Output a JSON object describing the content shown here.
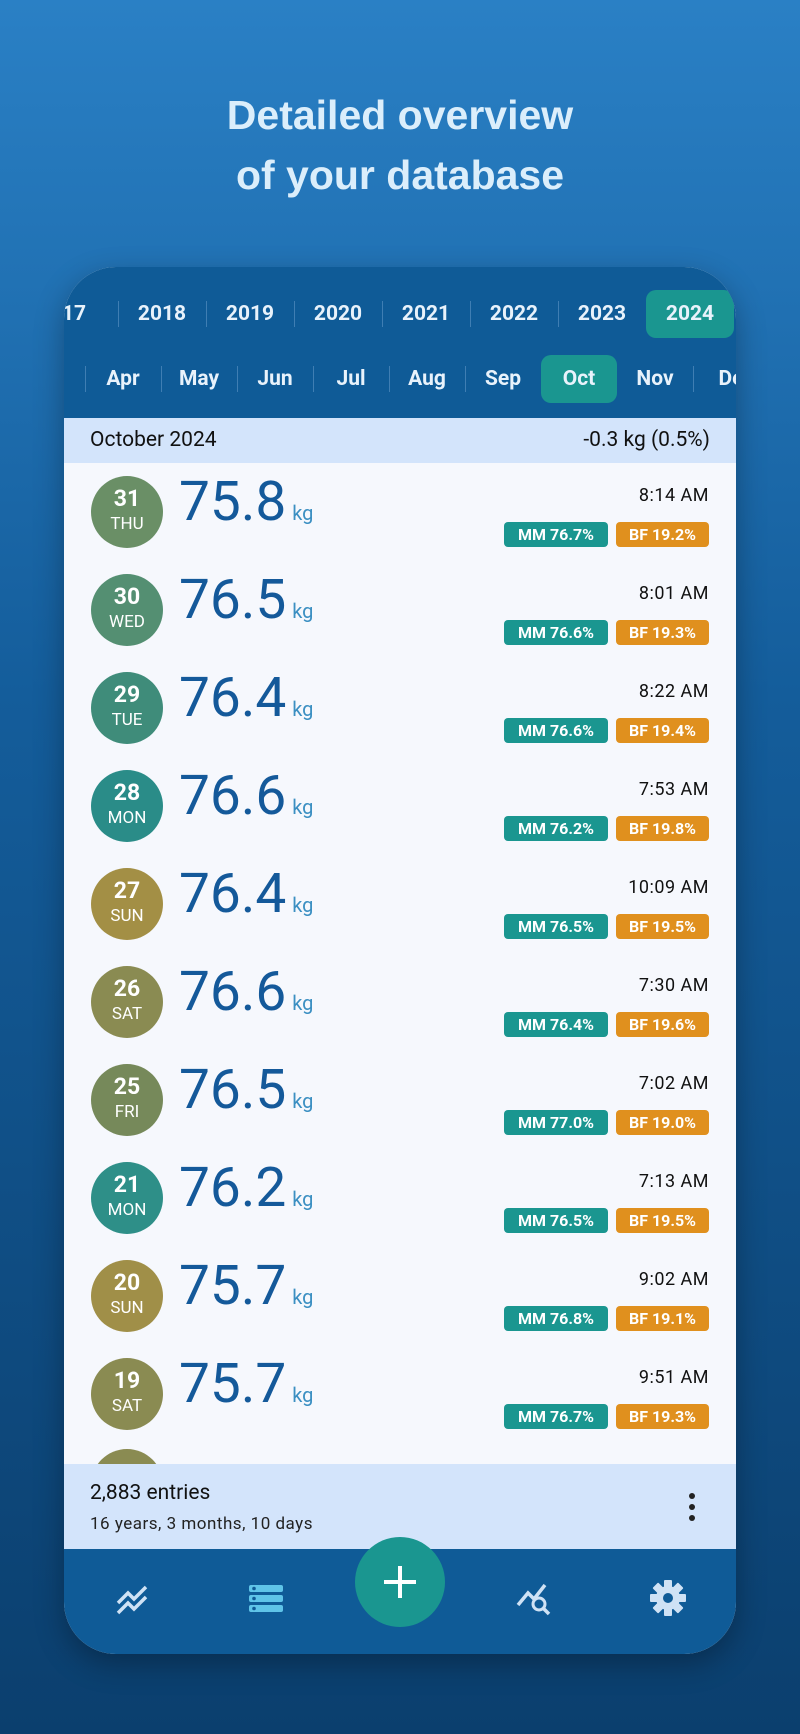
{
  "header": {
    "title": [
      "Detailed overview",
      "of your database"
    ]
  },
  "years": [
    "17",
    "2018",
    "2019",
    "2020",
    "2021",
    "2022",
    "2023",
    "2024"
  ],
  "selected_year_index": 7,
  "months": [
    "Apr",
    "May",
    "Jun",
    "Jul",
    "Aug",
    "Sep",
    "Oct",
    "Nov",
    "De"
  ],
  "selected_month_index": 6,
  "summary": {
    "month": "October 2024",
    "change": "-0.3 kg (0.5%)"
  },
  "entries": [
    {
      "day": "31",
      "weekday": "THU",
      "weight": "75.8",
      "unit": "kg",
      "time": "8:14 AM",
      "mm": "MM 76.7%",
      "bf": "BF 19.2%",
      "color": "#6a8f66"
    },
    {
      "day": "30",
      "weekday": "WED",
      "weight": "76.5",
      "unit": "kg",
      "time": "8:01 AM",
      "mm": "MM 76.6%",
      "bf": "BF 19.3%",
      "color": "#548f72"
    },
    {
      "day": "29",
      "weekday": "TUE",
      "weight": "76.4",
      "unit": "kg",
      "time": "8:22 AM",
      "mm": "MM 76.6%",
      "bf": "BF 19.4%",
      "color": "#3f8c7a"
    },
    {
      "day": "28",
      "weekday": "MON",
      "weight": "76.6",
      "unit": "kg",
      "time": "7:53 AM",
      "mm": "MM 76.2%",
      "bf": "BF 19.8%",
      "color": "#2a8c88"
    },
    {
      "day": "27",
      "weekday": "SUN",
      "weight": "76.4",
      "unit": "kg",
      "time": "10:09 AM",
      "mm": "MM 76.5%",
      "bf": "BF 19.5%",
      "color": "#a38f45"
    },
    {
      "day": "26",
      "weekday": "SAT",
      "weight": "76.6",
      "unit": "kg",
      "time": "7:30 AM",
      "mm": "MM 76.4%",
      "bf": "BF 19.6%",
      "color": "#8a8b52"
    },
    {
      "day": "25",
      "weekday": "FRI",
      "weight": "76.5",
      "unit": "kg",
      "time": "7:02 AM",
      "mm": "MM 77.0%",
      "bf": "BF 19.0%",
      "color": "#76895a"
    },
    {
      "day": "21",
      "weekday": "MON",
      "weight": "76.2",
      "unit": "kg",
      "time": "7:13 AM",
      "mm": "MM 76.5%",
      "bf": "BF 19.5%",
      "color": "#2e8f88"
    },
    {
      "day": "20",
      "weekday": "SUN",
      "weight": "75.7",
      "unit": "kg",
      "time": "9:02 AM",
      "mm": "MM 76.8%",
      "bf": "BF 19.1%",
      "color": "#a08f48"
    },
    {
      "day": "19",
      "weekday": "SAT",
      "weight": "75.7",
      "unit": "kg",
      "time": "9:51 AM",
      "mm": "MM 76.7%",
      "bf": "BF 19.3%",
      "color": "#8a8b52"
    }
  ],
  "footer": {
    "count": "2,883 entries",
    "span": "16 years, 3 months, 10 days"
  }
}
